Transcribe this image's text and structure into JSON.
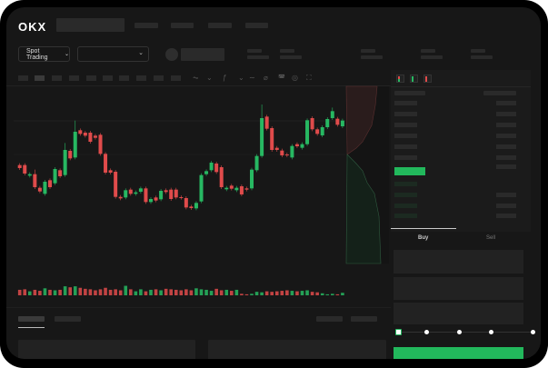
{
  "header": {
    "logo": "OKX",
    "market_dropdown": "Spot Trading"
  },
  "orderbook": {
    "icons": [
      "orderbook-both-icon",
      "orderbook-buy-icon",
      "orderbook-sell-icon"
    ]
  },
  "trade": {
    "tabs": [
      {
        "label": "Buy",
        "active": true
      },
      {
        "label": "Sell",
        "active": false
      }
    ],
    "slider_percent": 0,
    "submit_color": "#22b85c"
  },
  "colors": {
    "up": "#27b862",
    "down": "#e04b4b",
    "background": "#171717"
  },
  "chart_data": {
    "type": "candlestick",
    "candles": [
      [
        185,
        175
      ],
      [
        185,
        157
      ],
      [
        150,
        155
      ],
      [
        155,
        112,
        170
      ],
      [
        110,
        98
      ],
      [
        90,
        130
      ],
      [
        135,
        112
      ],
      [
        125,
        172
      ],
      [
        168,
        148
      ],
      [
        152,
        235,
        258
      ],
      [
        232,
        207
      ],
      [
        210,
        295,
        332
      ],
      [
        300,
        288
      ],
      [
        292,
        282
      ],
      [
        292,
        262
      ],
      [
        282,
        275
      ],
      [
        285,
        222
      ],
      [
        222,
        160
      ],
      [
        168,
        160
      ],
      [
        163,
        80
      ],
      [
        80,
        75
      ],
      [
        78,
        102
      ],
      [
        104,
        90
      ],
      [
        90,
        95
      ],
      [
        97,
        108
      ],
      [
        108,
        63
      ],
      [
        63,
        73
      ],
      [
        78,
        68
      ],
      [
        72,
        100
      ],
      [
        102,
        96
      ],
      [
        104,
        73
      ],
      [
        104,
        78
      ],
      [
        79,
        77
      ],
      [
        76,
        45
      ],
      [
        48,
        43
      ],
      [
        42,
        60
      ],
      [
        65,
        152
      ],
      [
        155,
        165
      ],
      [
        168,
        193
      ],
      [
        190,
        162
      ],
      [
        178,
        112
      ],
      [
        105,
        110
      ],
      [
        117,
        107
      ],
      [
        102,
        110
      ],
      [
        115,
        88
      ],
      [
        108,
        104
      ],
      [
        108,
        170
      ],
      [
        168,
        215
      ],
      [
        215,
        340,
        385
      ],
      [
        345,
        305
      ],
      [
        307,
        235
      ],
      [
        242,
        235
      ],
      [
        233,
        217
      ],
      [
        220,
        217
      ],
      [
        210,
        248
      ],
      [
        254,
        247
      ],
      [
        242,
        254
      ],
      [
        254,
        333
      ],
      [
        340,
        303
      ],
      [
        303,
        288
      ],
      [
        283,
        310
      ],
      [
        310,
        337
      ],
      [
        340,
        363,
        375
      ],
      [
        338,
        318
      ],
      [
        313,
        332
      ]
    ],
    "volume": [
      55,
      60,
      40,
      55,
      45,
      70,
      55,
      50,
      55,
      90,
      80,
      90,
      75,
      65,
      60,
      50,
      60,
      75,
      55,
      60,
      50,
      95,
      60,
      40,
      60,
      40,
      55,
      60,
      50,
      65,
      60,
      55,
      50,
      60,
      50,
      70,
      60,
      55,
      45,
      65,
      50,
      55,
      45,
      55,
      15,
      10,
      15,
      35,
      30,
      40,
      35,
      40,
      45,
      50,
      45,
      40,
      45,
      50,
      35,
      30,
      20,
      10,
      15,
      10,
      25
    ],
    "grid": false
  }
}
